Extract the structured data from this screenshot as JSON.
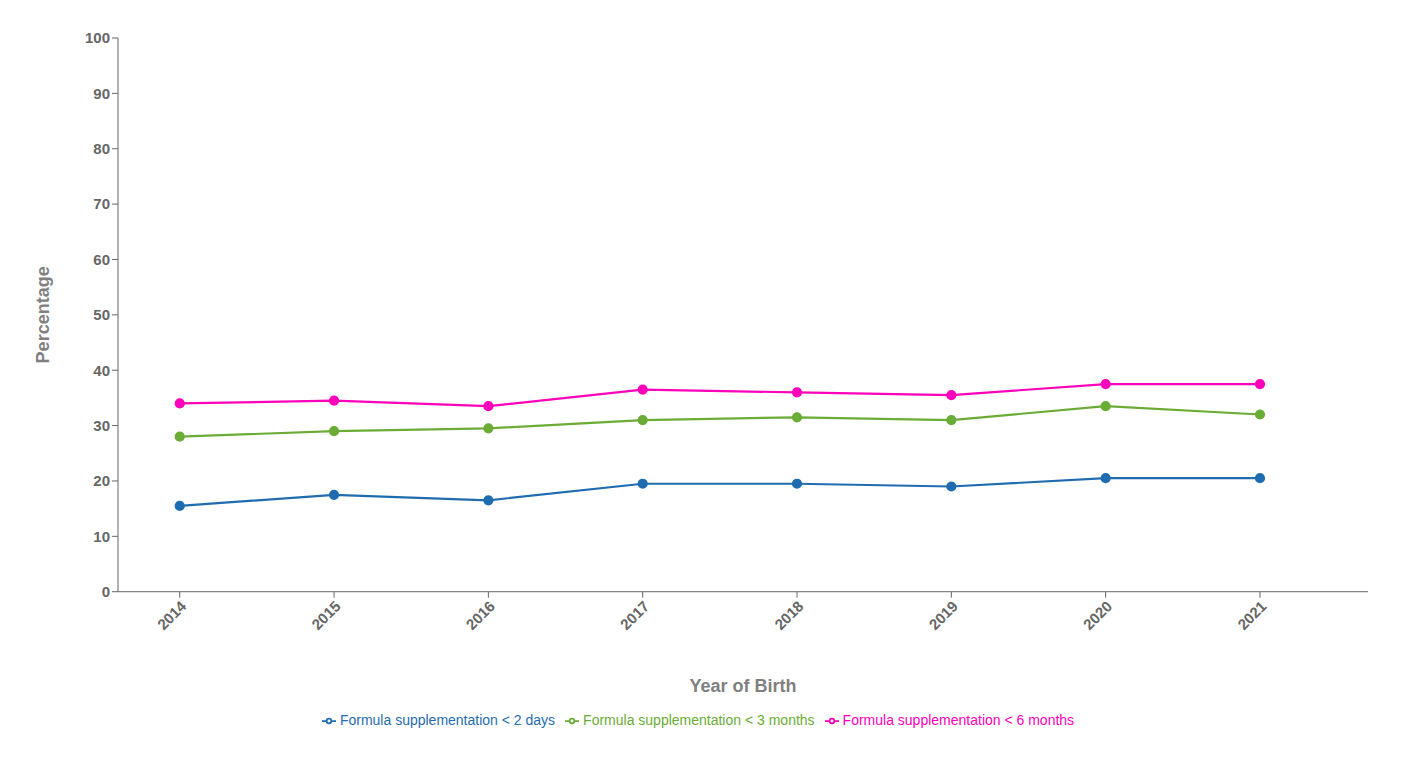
{
  "chart_data": {
    "type": "line",
    "x": [
      2014,
      2015,
      2016,
      2017,
      2018,
      2019,
      2020,
      2021
    ],
    "series": [
      {
        "name": "Formula supplementation < 2 days",
        "color": "#1F6CB0",
        "values": [
          15.5,
          17.5,
          16.5,
          19.5,
          19.5,
          19.0,
          20.5,
          20.5
        ]
      },
      {
        "name": "Formula supplementation < 3 months",
        "color": "#6AAC35",
        "values": [
          28.0,
          29.0,
          29.5,
          31.0,
          31.5,
          31.0,
          33.5,
          32.0
        ]
      },
      {
        "name": "Formula supplementation < 6 months",
        "color": "#FF00BB",
        "values": [
          34.0,
          34.5,
          33.5,
          36.5,
          36.0,
          35.5,
          37.5,
          37.5
        ]
      }
    ],
    "xlabel": "Year of Birth",
    "ylabel": "Percentage",
    "xlim": [
      2013.6,
      2021.7
    ],
    "xticks": [
      2014,
      2015,
      2016,
      2017,
      2018,
      2019,
      2020,
      2021
    ],
    "ylim": [
      0,
      100
    ],
    "yticks": [
      0,
      10,
      20,
      30,
      40,
      50,
      60,
      70,
      80,
      90,
      100
    ],
    "grid": false,
    "legend": "bottom",
    "marker": "circle"
  }
}
